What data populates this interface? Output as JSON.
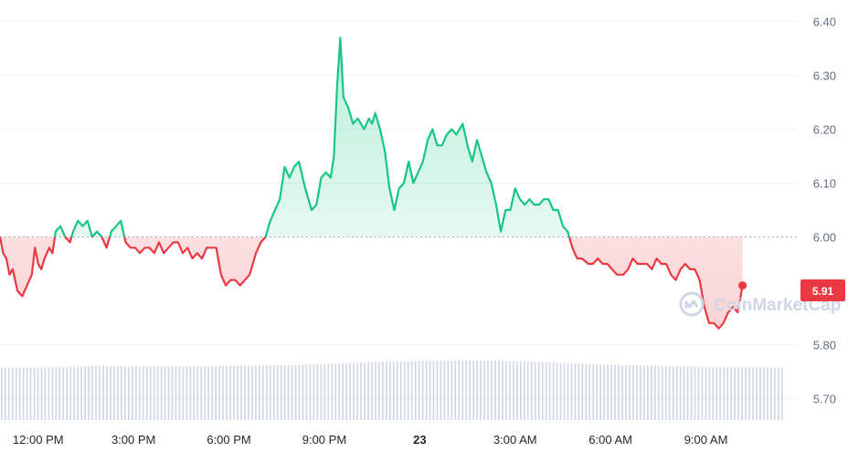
{
  "chart_data": {
    "type": "line",
    "baseline": 6.0,
    "current_price": "5.91",
    "ylim": [
      5.66,
      6.44
    ],
    "yticks": [
      "6.40",
      "6.30",
      "6.20",
      "6.10",
      "6.00",
      "5.80",
      "5.70"
    ],
    "xticks": [
      {
        "label": "12:00 PM",
        "t": 0
      },
      {
        "label": "3:00 PM",
        "t": 3
      },
      {
        "label": "6:00 PM",
        "t": 6
      },
      {
        "label": "9:00 PM",
        "t": 9
      },
      {
        "label": "23",
        "t": 12
      },
      {
        "label": "3:00 AM",
        "t": 15
      },
      {
        "label": "6:00 AM",
        "t": 18
      },
      {
        "label": "9:00 AM",
        "t": 21
      }
    ],
    "xlim": [
      -1.2,
      23.8
    ],
    "series": [
      {
        "values": [
          [
            -1.2,
            6.0
          ],
          [
            -1.1,
            5.97
          ],
          [
            -1.0,
            5.96
          ],
          [
            -0.9,
            5.93
          ],
          [
            -0.8,
            5.94
          ],
          [
            -0.65,
            5.9
          ],
          [
            -0.5,
            5.89
          ],
          [
            -0.35,
            5.91
          ],
          [
            -0.2,
            5.93
          ],
          [
            -0.1,
            5.98
          ],
          [
            0.0,
            5.95
          ],
          [
            0.1,
            5.94
          ],
          [
            0.2,
            5.96
          ],
          [
            0.35,
            5.98
          ],
          [
            0.45,
            5.97
          ],
          [
            0.55,
            6.01
          ],
          [
            0.7,
            6.02
          ],
          [
            0.85,
            6.0
          ],
          [
            1.0,
            5.99
          ],
          [
            1.1,
            6.01
          ],
          [
            1.25,
            6.03
          ],
          [
            1.4,
            6.02
          ],
          [
            1.55,
            6.03
          ],
          [
            1.7,
            6.0
          ],
          [
            1.85,
            6.01
          ],
          [
            2.0,
            6.0
          ],
          [
            2.15,
            5.98
          ],
          [
            2.3,
            6.01
          ],
          [
            2.45,
            6.02
          ],
          [
            2.6,
            6.03
          ],
          [
            2.75,
            5.99
          ],
          [
            2.9,
            5.98
          ],
          [
            3.05,
            5.98
          ],
          [
            3.2,
            5.97
          ],
          [
            3.35,
            5.98
          ],
          [
            3.5,
            5.98
          ],
          [
            3.65,
            5.97
          ],
          [
            3.8,
            5.99
          ],
          [
            3.95,
            5.97
          ],
          [
            4.1,
            5.98
          ],
          [
            4.25,
            5.99
          ],
          [
            4.4,
            5.99
          ],
          [
            4.55,
            5.97
          ],
          [
            4.7,
            5.98
          ],
          [
            4.85,
            5.96
          ],
          [
            5.0,
            5.97
          ],
          [
            5.15,
            5.96
          ],
          [
            5.3,
            5.98
          ],
          [
            5.45,
            5.98
          ],
          [
            5.6,
            5.98
          ],
          [
            5.75,
            5.93
          ],
          [
            5.9,
            5.91
          ],
          [
            6.05,
            5.92
          ],
          [
            6.2,
            5.92
          ],
          [
            6.35,
            5.91
          ],
          [
            6.5,
            5.92
          ],
          [
            6.65,
            5.93
          ],
          [
            6.85,
            5.97
          ],
          [
            7.0,
            5.99
          ],
          [
            7.15,
            6.0
          ],
          [
            7.3,
            6.03
          ],
          [
            7.45,
            6.05
          ],
          [
            7.6,
            6.07
          ],
          [
            7.75,
            6.13
          ],
          [
            7.9,
            6.11
          ],
          [
            8.05,
            6.13
          ],
          [
            8.2,
            6.14
          ],
          [
            8.4,
            6.09
          ],
          [
            8.6,
            6.05
          ],
          [
            8.75,
            6.06
          ],
          [
            8.9,
            6.11
          ],
          [
            9.05,
            6.12
          ],
          [
            9.2,
            6.11
          ],
          [
            9.3,
            6.15
          ],
          [
            9.4,
            6.28
          ],
          [
            9.5,
            6.37
          ],
          [
            9.6,
            6.26
          ],
          [
            9.75,
            6.24
          ],
          [
            9.9,
            6.21
          ],
          [
            10.05,
            6.22
          ],
          [
            10.25,
            6.2
          ],
          [
            10.4,
            6.22
          ],
          [
            10.5,
            6.21
          ],
          [
            10.6,
            6.23
          ],
          [
            10.75,
            6.2
          ],
          [
            10.9,
            6.16
          ],
          [
            11.05,
            6.09
          ],
          [
            11.2,
            6.05
          ],
          [
            11.35,
            6.09
          ],
          [
            11.5,
            6.1
          ],
          [
            11.65,
            6.14
          ],
          [
            11.8,
            6.1
          ],
          [
            11.95,
            6.12
          ],
          [
            12.1,
            6.14
          ],
          [
            12.25,
            6.18
          ],
          [
            12.4,
            6.2
          ],
          [
            12.55,
            6.17
          ],
          [
            12.7,
            6.17
          ],
          [
            12.85,
            6.19
          ],
          [
            13.0,
            6.2
          ],
          [
            13.15,
            6.19
          ],
          [
            13.35,
            6.21
          ],
          [
            13.5,
            6.17
          ],
          [
            13.65,
            6.14
          ],
          [
            13.8,
            6.18
          ],
          [
            13.95,
            6.15
          ],
          [
            14.1,
            6.12
          ],
          [
            14.25,
            6.1
          ],
          [
            14.4,
            6.06
          ],
          [
            14.55,
            6.01
          ],
          [
            14.7,
            6.05
          ],
          [
            14.85,
            6.05
          ],
          [
            15.0,
            6.09
          ],
          [
            15.15,
            6.07
          ],
          [
            15.3,
            6.06
          ],
          [
            15.45,
            6.07
          ],
          [
            15.6,
            6.06
          ],
          [
            15.75,
            6.06
          ],
          [
            15.9,
            6.07
          ],
          [
            16.05,
            6.07
          ],
          [
            16.2,
            6.05
          ],
          [
            16.35,
            6.05
          ],
          [
            16.5,
            6.02
          ],
          [
            16.65,
            6.01
          ],
          [
            16.8,
            5.98
          ],
          [
            16.95,
            5.96
          ],
          [
            17.1,
            5.96
          ],
          [
            17.3,
            5.95
          ],
          [
            17.45,
            5.95
          ],
          [
            17.6,
            5.96
          ],
          [
            17.75,
            5.95
          ],
          [
            17.9,
            5.95
          ],
          [
            18.05,
            5.94
          ],
          [
            18.2,
            5.93
          ],
          [
            18.4,
            5.93
          ],
          [
            18.55,
            5.94
          ],
          [
            18.7,
            5.96
          ],
          [
            18.85,
            5.95
          ],
          [
            19.0,
            5.95
          ],
          [
            19.15,
            5.95
          ],
          [
            19.3,
            5.94
          ],
          [
            19.45,
            5.96
          ],
          [
            19.6,
            5.95
          ],
          [
            19.75,
            5.95
          ],
          [
            19.9,
            5.93
          ],
          [
            20.05,
            5.92
          ],
          [
            20.2,
            5.94
          ],
          [
            20.35,
            5.95
          ],
          [
            20.5,
            5.94
          ],
          [
            20.65,
            5.94
          ],
          [
            20.8,
            5.92
          ],
          [
            20.95,
            5.87
          ],
          [
            21.1,
            5.84
          ],
          [
            21.25,
            5.84
          ],
          [
            21.4,
            5.83
          ],
          [
            21.55,
            5.84
          ],
          [
            21.7,
            5.86
          ],
          [
            21.85,
            5.87
          ],
          [
            22.0,
            5.86
          ],
          [
            22.15,
            5.91
          ]
        ]
      }
    ],
    "volume_relative": [
      0.82,
      0.82,
      0.83,
      0.85,
      0.84,
      0.84,
      0.84,
      0.85,
      0.85,
      0.86,
      0.88,
      0.9,
      0.92,
      0.93,
      0.93,
      0.93,
      0.92,
      0.9,
      0.88,
      0.86,
      0.85,
      0.84,
      0.83,
      0.83,
      0.82
    ],
    "colors": {
      "up": "#16c784",
      "down": "#ea3943",
      "grid": "#eff2f5",
      "baseline": "#a6b0c3",
      "volume": "#cfd6e4"
    },
    "watermark": "CoinMarketCap"
  }
}
